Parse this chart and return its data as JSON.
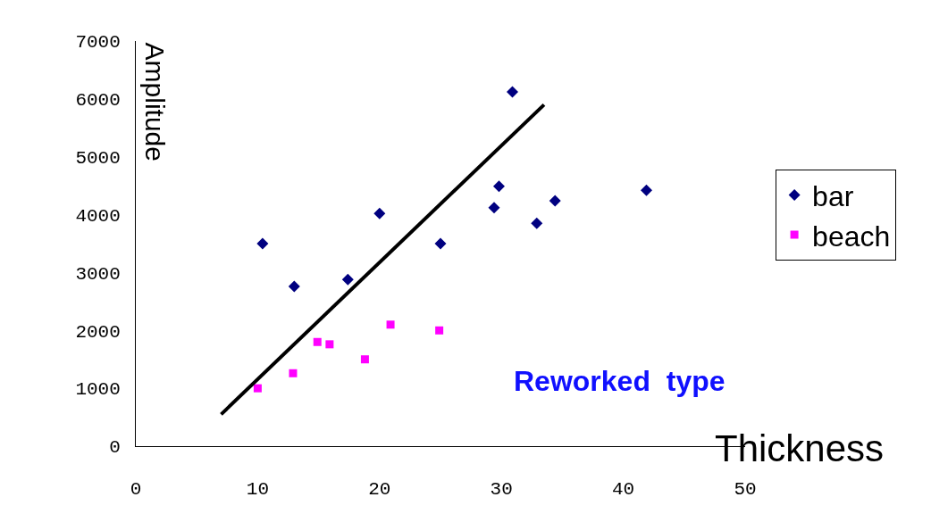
{
  "chart_data": {
    "type": "scatter",
    "xlabel": "Thickness",
    "ylabel": "Amplitude",
    "annotations": [
      "Reworked  type"
    ],
    "xlim": [
      0,
      50
    ],
    "xticks": [
      0,
      10,
      20,
      30,
      40,
      50
    ],
    "ylim": [
      0,
      7000
    ],
    "yticks": [
      0,
      1000,
      2000,
      3000,
      4000,
      5000,
      6000,
      7000
    ],
    "legend": "right",
    "series": [
      {
        "name": "bar",
        "color": "#000080",
        "marker": "diamond",
        "x": [
          10.4,
          13.0,
          17.4,
          20.0,
          25.0,
          29.4,
          29.8,
          30.9,
          32.9,
          34.4,
          41.9
        ],
        "values": [
          3500,
          2760,
          2880,
          4020,
          3500,
          4120,
          4490,
          6120,
          3850,
          4240,
          4420
        ]
      },
      {
        "name": "beach",
        "color": "#ff00ff",
        "marker": "square",
        "x": [
          10.0,
          12.9,
          14.9,
          15.9,
          18.8,
          20.9,
          24.9
        ],
        "values": [
          1000,
          1260,
          1800,
          1760,
          1500,
          2100,
          2000
        ]
      },
      {
        "type": "line",
        "color": "#000000",
        "line_style": "solid",
        "marker": "none",
        "x": [
          7.0,
          33.5
        ],
        "values": [
          550,
          5900
        ]
      }
    ]
  }
}
